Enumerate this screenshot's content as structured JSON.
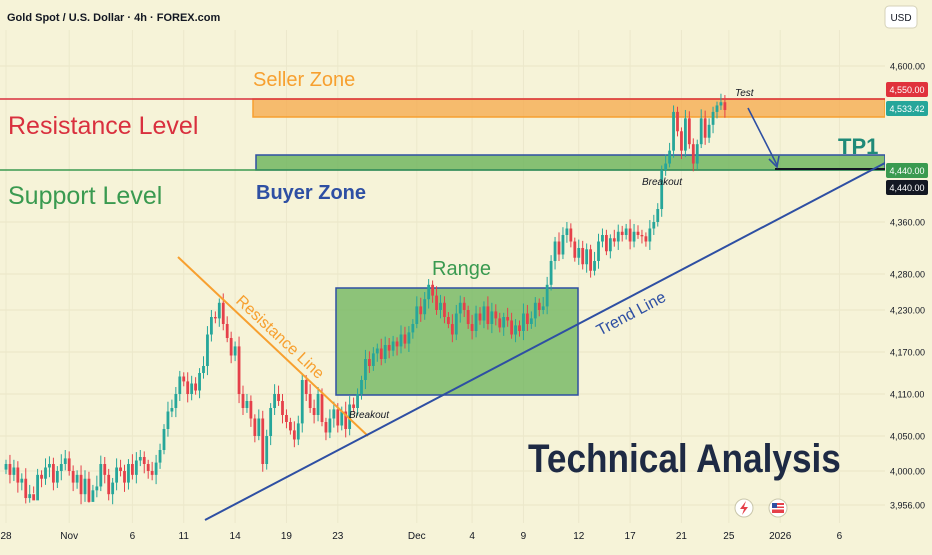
{
  "header": {
    "title": "Gold Spot / U.S. Dollar · 4h · FOREX.com",
    "currency_button": "USD"
  },
  "axis": {
    "y_ticks": [
      {
        "value": 3956,
        "label": "3,956.00"
      },
      {
        "value": 4000,
        "label": "4,000.00"
      },
      {
        "value": 4050,
        "label": "4,050.00"
      },
      {
        "value": 4110,
        "label": "4,110.00"
      },
      {
        "value": 4170,
        "label": "4,170.00"
      },
      {
        "value": 4230,
        "label": "4,230.00"
      },
      {
        "value": 4280,
        "label": "4,280.00"
      },
      {
        "value": 4360,
        "label": "4,360.00"
      },
      {
        "value": 4600,
        "label": "4,600.00"
      }
    ],
    "x_ticks": [
      {
        "idx": 0,
        "label": "28"
      },
      {
        "idx": 16,
        "label": "Nov"
      },
      {
        "idx": 32,
        "label": "6"
      },
      {
        "idx": 45,
        "label": "11"
      },
      {
        "idx": 58,
        "label": "14"
      },
      {
        "idx": 71,
        "label": "19"
      },
      {
        "idx": 84,
        "label": "23"
      },
      {
        "idx": 104,
        "label": "Dec"
      },
      {
        "idx": 118,
        "label": "4"
      },
      {
        "idx": 131,
        "label": "9"
      },
      {
        "idx": 145,
        "label": "12"
      },
      {
        "idx": 158,
        "label": "17"
      },
      {
        "idx": 171,
        "label": "21"
      },
      {
        "idx": 183,
        "label": "25"
      },
      {
        "idx": 196,
        "label": "2026"
      },
      {
        "idx": 211,
        "label": "6"
      }
    ]
  },
  "price_badges": {
    "resistance": {
      "label": "4,550.00",
      "color": "#e0323c"
    },
    "current": {
      "label": "4,533.42",
      "color": "#26a69a"
    },
    "support": {
      "label": "4,440.00",
      "color": "#3a9a50"
    },
    "tp": {
      "label": "4,440.00",
      "color": "#131722"
    }
  },
  "annotations": {
    "seller_zone": "Seller Zone",
    "resistance_level": "Resistance Level",
    "support_level": "Support Level",
    "buyer_zone": "Buyer Zone",
    "tp1": "TP1",
    "test": "Test",
    "breakout_top": "Breakout",
    "breakout_bottom": "Breakout",
    "range": "Range",
    "resistance_line": "Resistance Line",
    "trend_line": "Trend Line",
    "big_title": "Technical Analysis"
  },
  "colors": {
    "up": "#26a69a",
    "down": "#e5404a",
    "orange": "#f7a030",
    "green_zone": "#4caf50",
    "blue": "#2e4fa3",
    "red_level": "#d9303e",
    "background": "#f6f3d8"
  },
  "chart_data": {
    "type": "candlestick",
    "title": "Gold Spot / U.S. Dollar · 4h · FOREX.com",
    "ylim": [
      3935,
      4650
    ],
    "levels": {
      "resistance": 4550,
      "support": 4440,
      "tp1": 4440
    },
    "zones": {
      "seller_zone": {
        "from": 4530,
        "to": 4550
      },
      "buyer_zone": {
        "from": 4440,
        "to": 4458
      },
      "range": {
        "from": 4110,
        "to": 4265
      }
    },
    "series": [
      {
        "close": [
          4010,
          3995,
          4005,
          3985,
          3990,
          3965,
          3970,
          3950,
          3995,
          3990,
          4005,
          4010,
          3985,
          4000,
          4010,
          4018,
          4000,
          3985,
          3995,
          3970,
          3990,
          3960,
          3975,
          3980,
          4010,
          3995,
          3970,
          3985,
          4005,
          4000,
          3985,
          4010,
          3995,
          4015,
          4020,
          4010,
          4000,
          3995,
          4012,
          4030,
          4060,
          4085,
          4090,
          4110,
          4135,
          4128,
          4110,
          4125,
          4115,
          4140,
          4150,
          4195,
          4220,
          4218,
          4240,
          4210,
          4190,
          4165,
          4178,
          4110,
          4090,
          4100,
          4075,
          4050,
          4075,
          4010,
          4050,
          4090,
          4110,
          4100,
          4080,
          4070,
          4058,
          4045,
          4068,
          4130,
          4110,
          4090,
          4080,
          4110,
          4070,
          4055,
          4075,
          4088,
          4065,
          4085,
          4060,
          4095,
          4090,
          4110,
          4130,
          4160,
          4150,
          4168,
          4175,
          4160,
          4180,
          4172,
          4185,
          4178,
          4195,
          4182,
          4198,
          4210,
          4235,
          4224,
          4245,
          4265,
          4250,
          4230,
          4240,
          4220,
          4210,
          4195,
          4225,
          4240,
          4230,
          4210,
          4200,
          4225,
          4215,
          4235,
          4210,
          4228,
          4218,
          4205,
          4220,
          4215,
          4195,
          4208,
          4200,
          4225,
          4210,
          4218,
          4240,
          4230,
          4235,
          4265,
          4300,
          4330,
          4310,
          4340,
          4350,
          4330,
          4305,
          4320,
          4295,
          4318,
          4285,
          4300,
          4330,
          4340,
          4315,
          4335,
          4330,
          4345,
          4340,
          4350,
          4330,
          4345,
          4340,
          4338,
          4330,
          4350,
          4360,
          4380,
          4440,
          4450,
          4470,
          4530,
          4500,
          4470,
          4520,
          4480,
          4450,
          4480,
          4520,
          4490,
          4510,
          4530,
          4540,
          4545,
          4533
        ]
      }
    ],
    "x_labels": [
      "28",
      "Nov",
      "6",
      "11",
      "14",
      "19",
      "23",
      "Dec",
      "4",
      "9",
      "12",
      "17",
      "21",
      "25",
      "2026",
      "6"
    ]
  }
}
